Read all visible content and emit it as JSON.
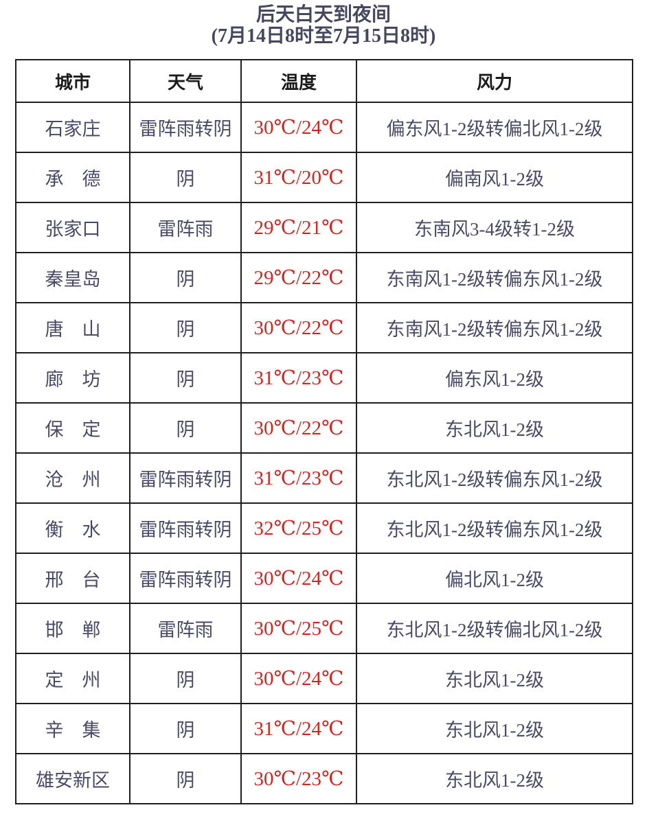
{
  "title": {
    "line1": "后天白天到夜间",
    "line2": "(7月14日8时至7月15日8时)"
  },
  "table": {
    "headers": [
      "城市",
      "天气",
      "温度",
      "风力"
    ],
    "rows": [
      {
        "city": "石家庄",
        "weather": "雷阵雨转阴",
        "temp": "30℃/24℃",
        "wind": "偏东风1-2级转偏北风1-2级"
      },
      {
        "city": "承　德",
        "weather": "阴",
        "temp": "31℃/20℃",
        "wind": "偏南风1-2级"
      },
      {
        "city": "张家口",
        "weather": "雷阵雨",
        "temp": "29℃/21℃",
        "wind": "东南风3-4级转1-2级"
      },
      {
        "city": "秦皇岛",
        "weather": "阴",
        "temp": "29℃/22℃",
        "wind": "东南风1-2级转偏东风1-2级"
      },
      {
        "city": "唐　山",
        "weather": "阴",
        "temp": "30℃/22℃",
        "wind": "东南风1-2级转偏东风1-2级"
      },
      {
        "city": "廊　坊",
        "weather": "阴",
        "temp": "31℃/23℃",
        "wind": "偏东风1-2级"
      },
      {
        "city": "保　定",
        "weather": "阴",
        "temp": "30℃/22℃",
        "wind": "东北风1-2级"
      },
      {
        "city": "沧　州",
        "weather": "雷阵雨转阴",
        "temp": "31℃/23℃",
        "wind": "东北风1-2级转偏东风1-2级"
      },
      {
        "city": "衡　水",
        "weather": "雷阵雨转阴",
        "temp": "32℃/25℃",
        "wind": "东北风1-2级转偏东风1-2级"
      },
      {
        "city": "邢　台",
        "weather": "雷阵雨转阴",
        "temp": "30℃/24℃",
        "wind": "偏北风1-2级"
      },
      {
        "city": "邯　郸",
        "weather": "雷阵雨",
        "temp": "30℃/25℃",
        "wind": "东北风1-2级转偏北风1-2级"
      },
      {
        "city": "定　州",
        "weather": "阴",
        "temp": "30℃/24℃",
        "wind": "东北风1-2级"
      },
      {
        "city": "辛　集",
        "weather": "阴",
        "temp": "31℃/24℃",
        "wind": "东北风1-2级"
      },
      {
        "city": "雄安新区",
        "weather": "阴",
        "temp": "30℃/23℃",
        "wind": "东北风1-2级"
      }
    ]
  },
  "colors": {
    "temperature_text": "#d32420",
    "body_text": "#4a4a66",
    "header_text": "#1b1b1b",
    "title_text": "#46465f",
    "border": "#1f1f1f"
  },
  "chart_data": {
    "type": "table",
    "title": "后天白天到夜间 (7月14日8时至7月15日8时)",
    "columns": [
      "城市",
      "天气",
      "温度",
      "风力"
    ],
    "rows": [
      [
        "石家庄",
        "雷阵雨转阴",
        "30℃/24℃",
        "偏东风1-2级转偏北风1-2级"
      ],
      [
        "承德",
        "阴",
        "31℃/20℃",
        "偏南风1-2级"
      ],
      [
        "张家口",
        "雷阵雨",
        "29℃/21℃",
        "东南风3-4级转1-2级"
      ],
      [
        "秦皇岛",
        "阴",
        "29℃/22℃",
        "东南风1-2级转偏东风1-2级"
      ],
      [
        "唐山",
        "阴",
        "30℃/22℃",
        "东南风1-2级转偏东风1-2级"
      ],
      [
        "廊坊",
        "阴",
        "31℃/23℃",
        "偏东风1-2级"
      ],
      [
        "保定",
        "阴",
        "30℃/22℃",
        "东北风1-2级"
      ],
      [
        "沧州",
        "雷阵雨转阴",
        "31℃/23℃",
        "东北风1-2级转偏东风1-2级"
      ],
      [
        "衡水",
        "雷阵雨转阴",
        "32℃/25℃",
        "东北风1-2级转偏东风1-2级"
      ],
      [
        "邢台",
        "雷阵雨转阴",
        "30℃/24℃",
        "偏北风1-2级"
      ],
      [
        "邯郸",
        "雷阵雨",
        "30℃/25℃",
        "东北风1-2级转偏北风1-2级"
      ],
      [
        "定州",
        "阴",
        "30℃/24℃",
        "东北风1-2级"
      ],
      [
        "辛集",
        "阴",
        "31℃/24℃",
        "东北风1-2级"
      ],
      [
        "雄安新区",
        "阴",
        "30℃/23℃",
        "东北风1-2级"
      ]
    ],
    "high_temps_c": [
      30,
      31,
      29,
      29,
      30,
      31,
      30,
      31,
      32,
      30,
      30,
      30,
      31,
      30
    ],
    "low_temps_c": [
      24,
      20,
      21,
      22,
      22,
      23,
      22,
      23,
      25,
      24,
      25,
      24,
      24,
      23
    ]
  }
}
